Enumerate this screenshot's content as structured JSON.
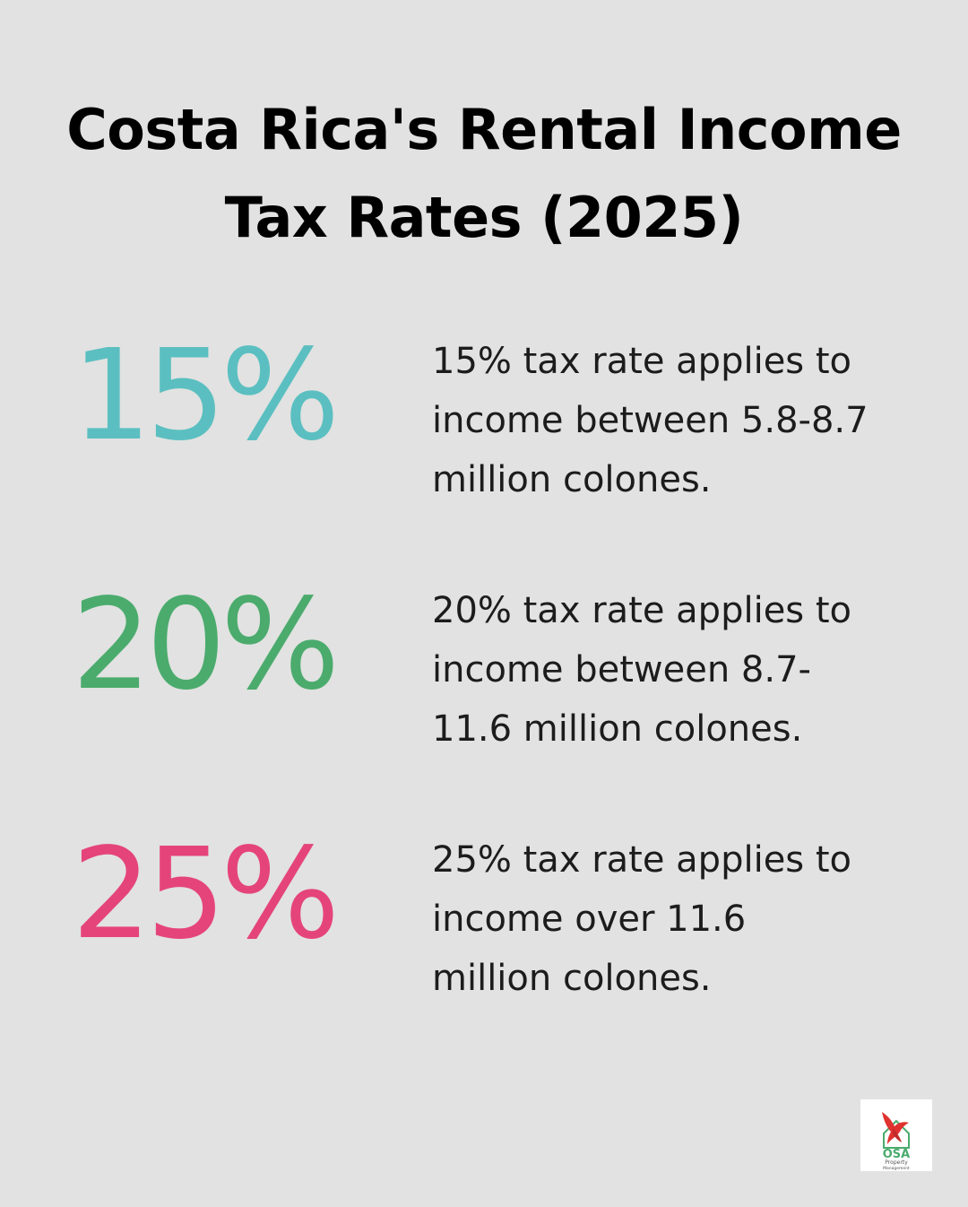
{
  "title": {
    "line1": "Costa Rica's Rental Income",
    "line2": "Tax Rates (2025)"
  },
  "rates": [
    {
      "value": "15%",
      "color": "#5bbfc1",
      "desc_line1": "15% tax rate applies to",
      "desc_line2": "income between 5.8-8.7",
      "desc_line3": "million colones."
    },
    {
      "value": "20%",
      "color": "#4bab6d",
      "desc_line1": "20% tax rate applies to",
      "desc_line2": "income between 8.7-",
      "desc_line3": "11.6 million colones."
    },
    {
      "value": "25%",
      "color": "#e5447a",
      "desc_line1": "25% tax rate applies to",
      "desc_line2": "income over 11.6",
      "desc_line3": "million colones."
    }
  ],
  "logo": {
    "name": "OSA",
    "line1": "Property",
    "line2": "Management"
  }
}
